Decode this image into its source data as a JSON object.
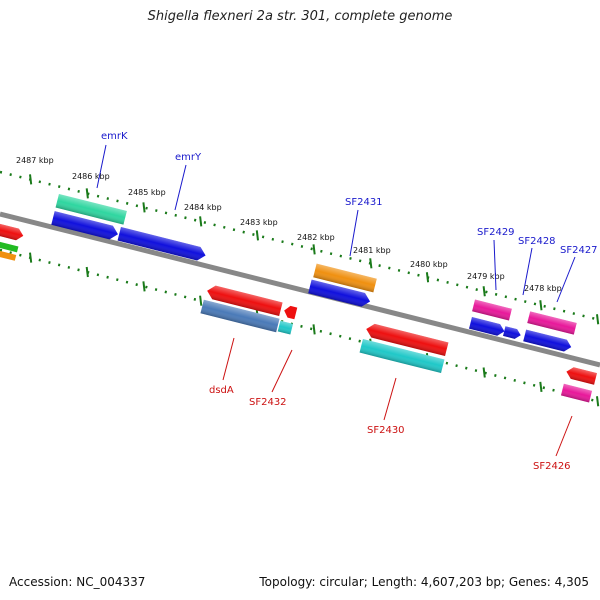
{
  "title": "Shigella flexneri 2a str. 301, complete genome",
  "footer": {
    "accession": "Accession: NC_004337",
    "summary": "Topology: circular; Length: 4,607,203 bp; Genes: 4,305"
  },
  "colors": {
    "axis": "#888888",
    "ticks": "#1a7a1a",
    "forward_label": "#1a1acc",
    "reverse_label": "#cc1111"
  },
  "kbp_labels": [
    "2487 kbp",
    "2486 kbp",
    "2485 kbp",
    "2484 kbp",
    "2483 kbp",
    "2482 kbp",
    "2481 kbp",
    "2480 kbp",
    "2479 kbp",
    "2478 kbp"
  ],
  "forward_genes": [
    {
      "name": "emrK",
      "color": "#2fd6a0"
    },
    {
      "name": "emrY",
      "color": "#1010dd"
    },
    {
      "name": "SF2431",
      "color": "#f09010"
    },
    {
      "name": "SF2429",
      "color": "#e8189a"
    },
    {
      "name": "SF2428",
      "color": "#1010dd"
    },
    {
      "name": "SF2427",
      "color": "#e8189a"
    }
  ],
  "reverse_genes": [
    {
      "name": "dsdA",
      "color": "#ee1010"
    },
    {
      "name": "SF2432",
      "color": "#4a7ab8"
    },
    {
      "name": "SF2430",
      "color": "#ee1010"
    },
    {
      "name": "SF2426",
      "color": "#e8189a"
    }
  ]
}
